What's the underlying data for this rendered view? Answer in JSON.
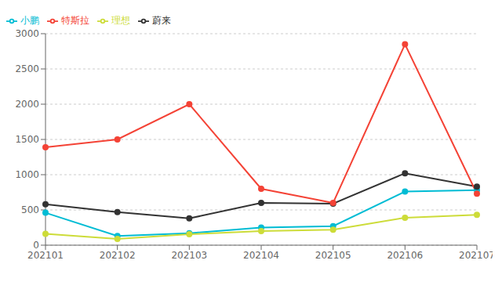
{
  "chart_data": {
    "type": "line",
    "categories": [
      "202101",
      "202102",
      "202103",
      "202104",
      "202105",
      "202106",
      "202107"
    ],
    "series": [
      {
        "name": "小鹏",
        "color": "#00BCD4",
        "marker": "circle",
        "values": [
          460,
          130,
          170,
          250,
          270,
          760,
          780
        ]
      },
      {
        "name": "蔚来",
        "color": "#333333",
        "marker": "circle",
        "values": [
          580,
          470,
          380,
          600,
          590,
          1020,
          830
        ]
      },
      {
        "name": "特斯拉",
        "color": "#F44336",
        "marker": "circle",
        "values": [
          1390,
          1500,
          2000,
          800,
          600,
          2850,
          730
        ]
      },
      {
        "name": "理想",
        "color": "#CDDC39",
        "marker": "circle",
        "values": [
          160,
          90,
          155,
          200,
          220,
          390,
          430
        ]
      }
    ],
    "ylim": [
      0,
      3000
    ],
    "yticks": [
      0,
      500,
      1000,
      1500,
      2000,
      2500,
      3000
    ],
    "grid": "y",
    "legend": "top-left"
  }
}
